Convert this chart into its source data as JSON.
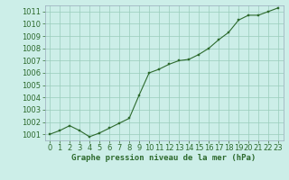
{
  "x": [
    0,
    1,
    2,
    3,
    4,
    5,
    6,
    7,
    8,
    9,
    10,
    11,
    12,
    13,
    14,
    15,
    16,
    17,
    18,
    19,
    20,
    21,
    22,
    23
  ],
  "y": [
    1001.0,
    1001.3,
    1001.7,
    1001.3,
    1000.8,
    1001.1,
    1001.5,
    1001.9,
    1002.3,
    1004.2,
    1006.0,
    1006.3,
    1006.7,
    1007.0,
    1007.1,
    1007.5,
    1008.0,
    1008.7,
    1009.3,
    1010.3,
    1010.7,
    1010.7,
    1011.0,
    1011.3
  ],
  "ylim": [
    1000.5,
    1011.5
  ],
  "xlim": [
    -0.5,
    23.5
  ],
  "yticks": [
    1001,
    1002,
    1003,
    1004,
    1005,
    1006,
    1007,
    1008,
    1009,
    1010,
    1011
  ],
  "xticks": [
    0,
    1,
    2,
    3,
    4,
    5,
    6,
    7,
    8,
    9,
    10,
    11,
    12,
    13,
    14,
    15,
    16,
    17,
    18,
    19,
    20,
    21,
    22,
    23
  ],
  "line_color": "#2d6a2d",
  "marker_color": "#2d6a2d",
  "bg_color": "#cceee8",
  "grid_color": "#99ccbb",
  "xlabel": "Graphe pression niveau de la mer (hPa)",
  "xlabel_color": "#2d6a2d",
  "tick_color": "#2d6a2d",
  "axis_color": "#99aabb",
  "font_size_label": 6.0,
  "font_size_xlabel": 6.5
}
